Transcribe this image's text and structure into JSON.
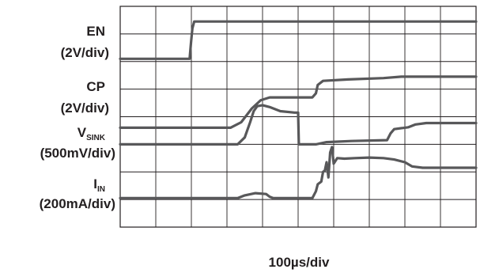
{
  "chart_data": {
    "type": "line",
    "title": "",
    "xlabel": "100µs/div",
    "ylabel": "",
    "grid": true,
    "legend": "none",
    "x_unit": "div",
    "y_unit": "div",
    "xlim": [
      0,
      10
    ],
    "ylim": [
      0,
      8
    ],
    "trace_color": "#58585a",
    "grid_color": "#231f20",
    "channels": [
      {
        "name": "EN",
        "unit": "(2V/div)"
      },
      {
        "name": "CP",
        "unit": "(2V/div)"
      },
      {
        "name": "V",
        "subscript": "SINK",
        "unit": "(500mV/div)"
      },
      {
        "name": "I",
        "subscript": "IN",
        "unit": "(200mA/div)"
      }
    ],
    "series": [
      {
        "channel": "EN",
        "x": [
          0,
          1.95,
          1.99,
          2.03,
          2.08,
          10
        ],
        "y": [
          6.1,
          6.1,
          6.7,
          7.2,
          7.45,
          7.45
        ]
      },
      {
        "channel": "CP",
        "x": [
          0,
          3.1,
          3.4,
          3.7,
          3.95,
          4.2,
          5.4,
          5.5,
          5.55,
          5.7,
          6.4,
          7.4,
          7.9,
          8.4,
          10
        ],
        "y": [
          3.6,
          3.6,
          3.8,
          4.3,
          4.6,
          4.7,
          4.7,
          4.85,
          5.15,
          5.3,
          5.35,
          5.4,
          5.45,
          5.45,
          5.45
        ]
      },
      {
        "channel": "VSINK",
        "x": [
          0,
          3.3,
          3.5,
          3.65,
          3.75,
          3.85,
          4.0,
          4.2,
          4.5,
          4.9,
          5.0,
          5.02,
          5.1,
          5.5,
          5.8,
          6.5,
          7.5,
          7.6,
          7.7,
          8.1,
          8.3,
          8.6,
          9.2,
          10
        ],
        "y": [
          3.0,
          3.0,
          3.25,
          3.8,
          4.2,
          4.38,
          4.42,
          4.35,
          4.2,
          4.15,
          4.15,
          3.0,
          3.0,
          3.0,
          3.08,
          3.12,
          3.15,
          3.4,
          3.55,
          3.62,
          3.72,
          3.77,
          3.77,
          3.77
        ]
      },
      {
        "channel": "IN",
        "x": [
          0,
          3.3,
          3.5,
          3.8,
          4.1,
          4.2,
          4.3,
          5.4,
          5.5,
          5.55,
          5.65,
          5.7,
          5.75,
          5.8,
          5.85,
          5.9,
          5.95,
          6.0,
          6.1,
          6.3,
          6.6,
          7.0,
          7.4,
          7.7,
          8.0,
          8.2,
          8.5,
          9.0,
          10
        ],
        "y": [
          1.05,
          1.05,
          1.15,
          1.23,
          1.2,
          1.1,
          1.05,
          1.05,
          1.3,
          1.55,
          1.65,
          2.0,
          2.05,
          2.35,
          1.8,
          2.7,
          2.9,
          2.3,
          2.5,
          2.48,
          2.5,
          2.52,
          2.5,
          2.45,
          2.35,
          2.2,
          2.15,
          2.15,
          2.15
        ]
      }
    ]
  }
}
